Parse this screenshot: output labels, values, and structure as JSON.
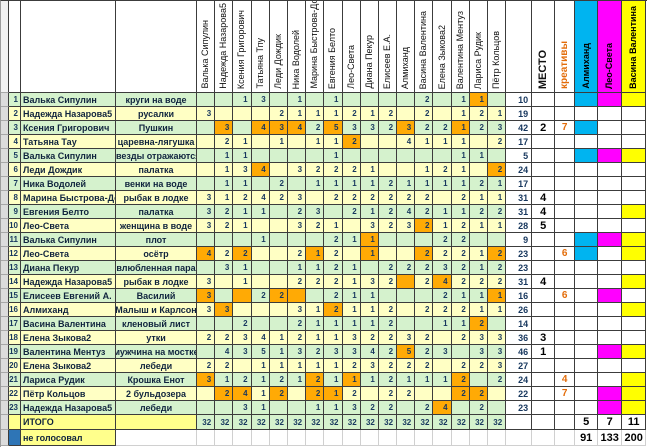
{
  "sheet": {
    "voters": [
      "Валька Сипулин",
      "Надежда Назарова5",
      "Ксения Григорович",
      "Татьяна Тпу",
      "Леди Дождик",
      "Ника Водолей",
      "Марина Быстрова-Докс",
      "Евгения Белто",
      "Лео-Света",
      "Диана Пекур",
      "Елисеев Е.А.",
      "Алмиханд",
      "Васина Валентина",
      "Елена Зыкова2",
      "Валентина Ментуз",
      "Лариса Рудик",
      "Пётр Кольцов"
    ],
    "place_header": "МЕСТО",
    "creative_header": "креативы",
    "judges": [
      {
        "name": "Алмиханд",
        "color": "#00b4f0"
      },
      {
        "name": "Лео-Света",
        "color": "#ff00ff"
      },
      {
        "name": "Васина Валентина",
        "color": "#ffff00"
      }
    ],
    "colors": {
      "row_green": "#d5f2cd",
      "row_yellow": "#ffffc4",
      "highlight_orange": "#ffaa05",
      "label_yellow": "#ffff8c",
      "not_voted_blue": "#2e75b6",
      "creative_text": "#e36c09"
    },
    "rows": [
      {
        "num": "1",
        "name": "Валька Сипулин",
        "entry": "круги на воде",
        "votes": [
          "",
          "",
          "1",
          "3",
          "",
          "1",
          "",
          "1",
          "",
          "",
          "",
          "",
          "2",
          "",
          "1",
          "1",
          ""
        ],
        "orange": [
          15
        ],
        "total": "10",
        "place": "",
        "creative": "",
        "judges": [
          1,
          1,
          1
        ]
      },
      {
        "num": "2",
        "name": "Надежда Назарова5",
        "entry": "русалки",
        "votes": [
          "3",
          "",
          "",
          "",
          "2",
          "1",
          "1",
          "1",
          "2",
          "1",
          "2",
          "",
          "2",
          "",
          "1",
          "2",
          "1"
        ],
        "orange": [],
        "total": "19",
        "place": "",
        "creative": "",
        "judges": [
          0,
          0,
          0
        ]
      },
      {
        "num": "3",
        "name": "Ксения Григорович",
        "entry": "Пушкин",
        "votes": [
          "",
          "3",
          "",
          "4",
          "3",
          "4",
          "2",
          "5",
          "3",
          "3",
          "2",
          "3",
          "2",
          "2",
          "1",
          "2",
          "3"
        ],
        "orange": [
          1,
          3,
          4,
          5,
          7,
          11,
          14
        ],
        "total": "42",
        "place": "2",
        "creative": "7",
        "judges": [
          1,
          0,
          0
        ]
      },
      {
        "num": "4",
        "name": "Татьяна Тау",
        "entry": "царевна-лягушка",
        "votes": [
          "",
          "2",
          "1",
          "",
          "1",
          "",
          "1",
          "1",
          "2",
          "",
          "",
          "4",
          "1",
          "1",
          "1",
          "",
          "2"
        ],
        "orange": [
          8
        ],
        "total": "17",
        "place": "",
        "creative": "",
        "judges": [
          0,
          0,
          0
        ]
      },
      {
        "num": "5",
        "name": "Валька Сипулин",
        "entry": "звезды отражаются",
        "votes": [
          "",
          "1",
          "1",
          "",
          "",
          "",
          "",
          "1",
          "",
          "",
          "",
          "",
          "",
          "",
          "1",
          "1",
          ""
        ],
        "orange": [],
        "total": "5",
        "place": "",
        "creative": "",
        "judges": [
          1,
          1,
          1
        ]
      },
      {
        "num": "6",
        "name": "Леди Дождик",
        "entry": "палатка",
        "votes": [
          "",
          "1",
          "3",
          "4",
          "",
          "3",
          "2",
          "2",
          "2",
          "1",
          "",
          "",
          "1",
          "2",
          "1",
          "",
          "2"
        ],
        "orange": [
          3,
          16
        ],
        "total": "24",
        "place": "",
        "creative": "",
        "judges": [
          0,
          0,
          0
        ]
      },
      {
        "num": "7",
        "name": "Ника Водолей",
        "entry": "венки на воде",
        "votes": [
          "",
          "1",
          "1",
          "",
          "2",
          "",
          "1",
          "1",
          "1",
          "1",
          "2",
          "1",
          "1",
          "1",
          "1",
          "2",
          "1"
        ],
        "orange": [],
        "total": "17",
        "place": "",
        "creative": "",
        "judges": [
          0,
          0,
          0
        ]
      },
      {
        "num": "8",
        "name": "Марина Быстрова-Докс",
        "entry": "рыбак в лодке",
        "votes": [
          "3",
          "1",
          "2",
          "4",
          "2",
          "3",
          "",
          "2",
          "2",
          "2",
          "2",
          "2",
          "2",
          "",
          "2",
          "1",
          "1"
        ],
        "orange": [],
        "total": "31",
        "place": "4",
        "creative": "",
        "judges": [
          0,
          0,
          0
        ]
      },
      {
        "num": "9",
        "name": "Евгения Белто",
        "entry": "палатка",
        "votes": [
          "3",
          "2",
          "1",
          "1",
          "",
          "2",
          "3",
          "",
          "2",
          "1",
          "2",
          "4",
          "2",
          "1",
          "1",
          "2",
          "2"
        ],
        "orange": [],
        "total": "31",
        "place": "4",
        "creative": "",
        "judges": [
          0,
          0,
          1
        ]
      },
      {
        "num": "10",
        "name": "Лео-Света",
        "entry": "женщина в воде",
        "votes": [
          "3",
          "2",
          "1",
          "",
          "",
          "3",
          "2",
          "1",
          "",
          "3",
          "2",
          "3",
          "2",
          "1",
          "2",
          "1",
          "1"
        ],
        "orange": [
          12
        ],
        "total": "28",
        "place": "5",
        "creative": "",
        "judges": [
          0,
          0,
          0
        ]
      },
      {
        "num": "11",
        "name": "Валька Сипулин",
        "entry": "плот",
        "votes": [
          "",
          "",
          "",
          "1",
          "",
          "",
          "",
          "2",
          "1",
          "1",
          "",
          "",
          "",
          "2",
          "2",
          "",
          ""
        ],
        "orange": [
          9
        ],
        "total": "9",
        "place": "",
        "creative": "",
        "judges": [
          1,
          1,
          1
        ]
      },
      {
        "num": "12",
        "name": "Лео-Света",
        "entry": "осётр",
        "votes": [
          "4",
          "2",
          "2",
          "",
          "",
          "2",
          "1",
          "2",
          "",
          "1",
          "",
          "",
          "2",
          "2",
          "2",
          "1",
          "2"
        ],
        "orange": [
          0,
          2,
          6,
          9,
          12,
          16
        ],
        "total": "23",
        "place": "",
        "creative": "6",
        "judges": [
          1,
          0,
          1
        ]
      },
      {
        "num": "13",
        "name": "Диана Пекур",
        "entry": "влюбленная пара",
        "votes": [
          "",
          "3",
          "1",
          "",
          "",
          "1",
          "1",
          "2",
          "1",
          "",
          "2",
          "2",
          "2",
          "3",
          "2",
          "1",
          "2"
        ],
        "orange": [],
        "total": "23",
        "place": "",
        "creative": "",
        "judges": [
          0,
          0,
          0
        ]
      },
      {
        "num": "14",
        "name": "Надежда Назарова5",
        "entry": "рыбак в лодке",
        "votes": [
          "3",
          "",
          "1",
          "",
          "",
          "2",
          "2",
          "2",
          "1",
          "3",
          "2",
          "",
          "2",
          "4",
          "2",
          "2",
          "2"
        ],
        "orange": [
          11,
          13
        ],
        "total": "31",
        "place": "4",
        "creative": "",
        "judges": [
          0,
          0,
          1
        ]
      },
      {
        "num": "15",
        "name": "Елисеев Евгений А.",
        "entry": "Василий",
        "votes": [
          "3",
          "",
          "",
          "2",
          "2",
          "",
          "",
          "2",
          "1",
          "1",
          "",
          "",
          "",
          "2",
          "1",
          "1",
          "1"
        ],
        "orange": [
          0,
          2,
          4,
          5,
          16
        ],
        "total": "16",
        "place": "",
        "creative": "6",
        "judges": [
          0,
          1,
          0
        ]
      },
      {
        "num": "16",
        "name": "Алмиханд",
        "entry": "Малыш и Карлсон",
        "votes": [
          "3",
          "3",
          "",
          "",
          "",
          "3",
          "1",
          "2",
          "1",
          "1",
          "2",
          "",
          "2",
          "2",
          "2",
          "1",
          "1"
        ],
        "orange": [
          1,
          7
        ],
        "total": "26",
        "place": "",
        "creative": "",
        "judges": [
          0,
          0,
          1
        ]
      },
      {
        "num": "17",
        "name": "Васина Валентина",
        "entry": "кленовый лист",
        "votes": [
          "",
          "",
          "2",
          "",
          "",
          "2",
          "1",
          "1",
          "1",
          "1",
          "2",
          "",
          "",
          "1",
          "1",
          "2",
          ""
        ],
        "orange": [
          15
        ],
        "total": "14",
        "place": "",
        "creative": "",
        "judges": [
          0,
          0,
          0
        ]
      },
      {
        "num": "18",
        "name": "Елена Зыкова2",
        "entry": "утки",
        "votes": [
          "2",
          "2",
          "3",
          "4",
          "1",
          "2",
          "1",
          "1",
          "3",
          "2",
          "2",
          "3",
          "2",
          "",
          "2",
          "3",
          "3"
        ],
        "orange": [],
        "total": "36",
        "place": "3",
        "creative": "",
        "judges": [
          0,
          0,
          0
        ]
      },
      {
        "num": "19",
        "name": "Валентина Ментуз",
        "entry": "мужчина на мостке",
        "votes": [
          "",
          "4",
          "3",
          "5",
          "1",
          "3",
          "2",
          "3",
          "3",
          "4",
          "2",
          "5",
          "2",
          "3",
          "",
          "3",
          "3"
        ],
        "orange": [
          11
        ],
        "total": "46",
        "place": "1",
        "creative": "",
        "judges": [
          0,
          1,
          1
        ]
      },
      {
        "num": "20",
        "name": "Елена Зыкова2",
        "entry": "лебеди",
        "votes": [
          "2",
          "2",
          "",
          "1",
          "1",
          "1",
          "1",
          "1",
          "2",
          "3",
          "2",
          "2",
          "2",
          "",
          "2",
          "2",
          "3"
        ],
        "orange": [],
        "total": "27",
        "place": "",
        "creative": "",
        "judges": [
          0,
          0,
          0
        ]
      },
      {
        "num": "21",
        "name": "Лариса Рудик",
        "entry": "Крошка Енот",
        "votes": [
          "3",
          "1",
          "2",
          "1",
          "2",
          "1",
          "2",
          "1",
          "1",
          "1",
          "2",
          "1",
          "1",
          "1",
          "2",
          "",
          "2"
        ],
        "orange": [
          0,
          6,
          8,
          14
        ],
        "total": "24",
        "place": "",
        "creative": "4",
        "judges": [
          0,
          0,
          1
        ]
      },
      {
        "num": "22",
        "name": "Пётр Кольцов",
        "entry": "2 бульдозера",
        "votes": [
          "",
          "2",
          "4",
          "1",
          "2",
          "",
          "2",
          "1",
          "2",
          "",
          "2",
          "2",
          "",
          "",
          "2",
          "2",
          ""
        ],
        "orange": [
          1,
          2,
          4,
          6,
          7,
          14,
          15
        ],
        "total": "22",
        "place": "",
        "creative": "7",
        "judges": [
          0,
          1,
          1
        ]
      },
      {
        "num": "23",
        "name": "Надежда Назарова5",
        "entry": "лебеди",
        "votes": [
          "",
          "",
          "3",
          "1",
          "",
          "",
          "1",
          "1",
          "3",
          "2",
          "2",
          "",
          "2",
          "4",
          "",
          "2",
          ""
        ],
        "orange": [
          13
        ],
        "total": "23",
        "place": "",
        "creative": "",
        "judges": [
          0,
          1,
          1
        ]
      }
    ],
    "total_row": {
      "label": "ИТОГО",
      "vote_total": "32",
      "judge_totals": [
        "5",
        "7",
        "11"
      ]
    },
    "not_voted_row": {
      "label": "не голосовал",
      "judge_values": [
        "91",
        "133",
        "200"
      ]
    }
  }
}
